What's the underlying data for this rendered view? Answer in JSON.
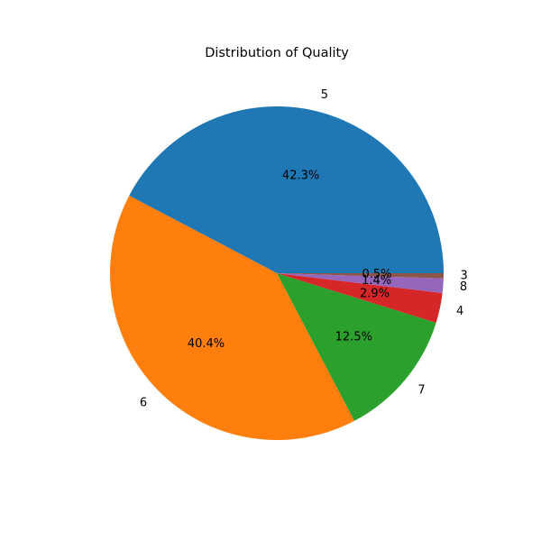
{
  "chart_data": {
    "type": "pie",
    "title": "Distribution of Quality",
    "start_angle_deg": 0,
    "direction": "counterclockwise",
    "slices": [
      {
        "label": "5",
        "value": 42.3,
        "pct_label": "42.3%",
        "color": "#1f77b4"
      },
      {
        "label": "6",
        "value": 40.4,
        "pct_label": "40.4%",
        "color": "#ff7f0e"
      },
      {
        "label": "7",
        "value": 12.5,
        "pct_label": "12.5%",
        "color": "#2ca02c"
      },
      {
        "label": "4",
        "value": 2.9,
        "pct_label": "2.9%",
        "color": "#d62728"
      },
      {
        "label": "8",
        "value": 1.4,
        "pct_label": "1.4%",
        "color": "#9467bd"
      },
      {
        "label": "3",
        "value": 0.5,
        "pct_label": "0.5%",
        "color": "#8c564b"
      }
    ]
  }
}
